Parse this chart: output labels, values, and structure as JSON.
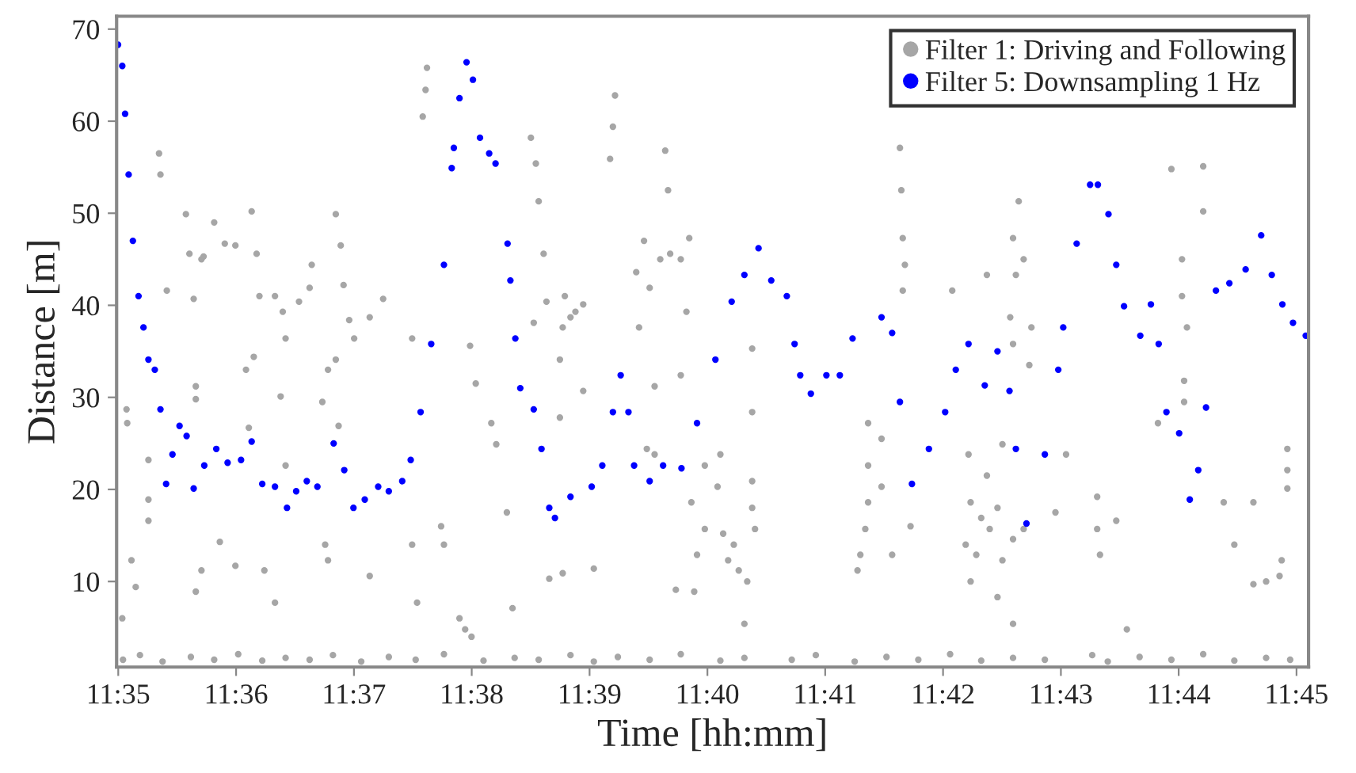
{
  "chart_data": {
    "type": "scatter",
    "xlabel": "Time [hh:mm]",
    "ylabel": "Distance [m]",
    "legend": "top right",
    "marker": "circle",
    "grid": false,
    "xlim": [
      11.5831,
      11.7517
    ],
    "ylim": [
      0.7,
      71.4
    ],
    "xticks": [
      {
        "value": 11.58333,
        "label": "11:35"
      },
      {
        "value": 11.6,
        "label": "11:36"
      },
      {
        "value": 11.61667,
        "label": "11:37"
      },
      {
        "value": 11.63333,
        "label": "11:38"
      },
      {
        "value": 11.65,
        "label": "11:39"
      },
      {
        "value": 11.66667,
        "label": "11:40"
      },
      {
        "value": 11.68333,
        "label": "11:41"
      },
      {
        "value": 11.7,
        "label": "11:42"
      },
      {
        "value": 11.71667,
        "label": "11:43"
      },
      {
        "value": 11.73333,
        "label": "11:44"
      },
      {
        "value": 11.75,
        "label": "11:45"
      }
    ],
    "yticks": [
      10,
      20,
      30,
      40,
      50,
      60,
      70
    ],
    "series": [
      {
        "name": "Filter 1: Driving and Following",
        "color": "#a6a6a6",
        "x": [
          11.5891,
          11.5893,
          11.5845,
          11.5846,
          11.5876,
          11.5876,
          11.5876,
          11.5839,
          11.5858,
          11.5852,
          11.5902,
          11.5929,
          11.5934,
          11.594,
          11.5951,
          11.5954,
          11.5969,
          11.5984,
          11.5999,
          11.6022,
          11.6029,
          11.6033,
          11.6055,
          11.6066,
          11.607,
          11.6089,
          11.6104,
          11.6107,
          11.6141,
          11.6148,
          11.6152,
          11.616,
          11.6167,
          11.6189,
          11.6208,
          11.5943,
          11.5943,
          11.6025,
          11.6014,
          11.6063,
          11.613,
          11.6141,
          11.6122,
          11.6145,
          11.6018,
          11.607,
          11.5951,
          11.5977,
          11.5999,
          11.5943,
          11.604,
          11.6055,
          11.6126,
          11.613,
          11.6189,
          11.6249,
          11.6256,
          11.629,
          11.6294,
          11.6268,
          11.6264,
          11.627,
          11.6249,
          11.6316,
          11.6324,
          11.6333,
          11.6331,
          11.6339,
          11.6361,
          11.6368,
          11.6383,
          11.6391,
          11.6417,
          11.6424,
          11.6428,
          11.6435,
          11.6439,
          11.6421,
          11.6443,
          11.6462,
          11.6473,
          11.648,
          11.6491,
          11.6458,
          11.6465,
          11.6462,
          11.6506,
          11.6536,
          11.6533,
          11.6529,
          11.6607,
          11.6611,
          11.6577,
          11.6566,
          11.6585,
          11.66,
          11.6614,
          11.6629,
          11.6641,
          11.6637,
          11.6629,
          11.6592,
          11.657,
          11.6491,
          11.6458,
          11.6581,
          11.6592,
          11.6644,
          11.6663,
          11.6685,
          11.6681,
          11.6689,
          11.6663,
          11.6652,
          11.6696,
          11.6711,
          11.6723,
          11.6719,
          11.673,
          11.673,
          11.6734,
          11.6622,
          11.6648,
          11.6704,
          11.673,
          11.673,
          11.6939,
          11.6941,
          11.6943,
          11.6946,
          11.6943,
          11.6894,
          11.6894,
          11.6894,
          11.689,
          11.6883,
          11.6879,
          11.6913,
          11.6913,
          11.6928,
          11.6954,
          11.7036,
          11.7039,
          11.7054,
          11.7066,
          11.7077,
          11.7032,
          11.7047,
          11.7084,
          11.7039,
          11.7077,
          11.7099,
          11.7099,
          11.7114,
          11.7122,
          11.7125,
          11.7099,
          11.7095,
          11.7099,
          11.7107,
          11.7114,
          11.7103,
          11.7062,
          11.7013,
          11.7062,
          11.7084,
          11.7159,
          11.7174,
          11.7218,
          11.7218,
          11.7222,
          11.7245,
          11.726,
          11.7323,
          11.7368,
          11.7368,
          11.7338,
          11.7338,
          11.7345,
          11.7341,
          11.7341,
          11.7304,
          11.7397,
          11.7412,
          11.7439,
          11.7439,
          11.7457,
          11.7476,
          11.7487,
          11.7487,
          11.7487,
          11.7479,
          11.584,
          11.5864,
          11.5896,
          11.5936,
          11.5969,
          11.6003,
          11.6037,
          11.607,
          11.6104,
          11.6137,
          11.6177,
          11.6216,
          11.6254,
          11.6294,
          11.635,
          11.6394,
          11.6428,
          11.6473,
          11.6506,
          11.654,
          11.6585,
          11.6629,
          11.6685,
          11.6719,
          11.6786,
          11.682,
          11.6875,
          11.692,
          11.6965,
          11.701,
          11.7054,
          11.7099,
          11.7144,
          11.7211,
          11.7233,
          11.7278,
          11.7323,
          11.7368,
          11.7412,
          11.7457,
          11.7491
        ],
        "values": [
          56.5,
          54.2,
          28.7,
          27.2,
          23.2,
          18.9,
          16.6,
          6.0,
          9.4,
          12.3,
          41.6,
          49.9,
          45.6,
          40.7,
          45.0,
          45.3,
          49.0,
          46.7,
          46.5,
          50.2,
          45.6,
          41.0,
          41.0,
          39.3,
          36.4,
          40.4,
          41.9,
          44.4,
          49.9,
          46.5,
          42.2,
          38.4,
          36.4,
          38.7,
          40.7,
          31.2,
          29.8,
          34.4,
          33.0,
          30.1,
          33.0,
          34.1,
          29.5,
          26.9,
          26.7,
          22.6,
          11.2,
          14.3,
          11.7,
          8.9,
          11.2,
          7.7,
          14.0,
          12.3,
          10.6,
          14.0,
          7.7,
          16.0,
          14.0,
          63.4,
          60.5,
          65.8,
          36.4,
          6.0,
          4.8,
          4.0,
          35.6,
          31.5,
          27.2,
          24.9,
          17.5,
          7.1,
          58.2,
          55.4,
          51.3,
          45.6,
          40.4,
          38.1,
          10.3,
          37.6,
          38.7,
          39.3,
          40.1,
          34.1,
          41.0,
          10.9,
          11.4,
          62.8,
          59.4,
          55.9,
          56.8,
          52.5,
          47.0,
          43.6,
          41.9,
          45.0,
          45.6,
          45.0,
          47.3,
          39.3,
          32.4,
          31.2,
          37.6,
          30.7,
          27.8,
          24.4,
          23.8,
          18.6,
          22.6,
          23.8,
          20.3,
          15.2,
          15.7,
          12.9,
          12.3,
          11.2,
          10.0,
          5.4,
          20.9,
          18.0,
          15.7,
          9.1,
          8.9,
          14.0,
          28.4,
          35.3,
          57.1,
          52.5,
          47.3,
          44.4,
          41.6,
          27.2,
          22.6,
          18.6,
          15.7,
          12.9,
          11.2,
          25.5,
          20.3,
          12.9,
          16.0,
          23.8,
          18.6,
          16.9,
          15.7,
          18.0,
          14.0,
          12.9,
          12.3,
          10.0,
          8.3,
          5.4,
          14.6,
          15.7,
          33.5,
          37.6,
          35.8,
          38.7,
          47.3,
          51.3,
          45.0,
          43.3,
          43.3,
          41.6,
          21.5,
          24.9,
          17.5,
          23.8,
          19.2,
          15.7,
          12.9,
          16.6,
          4.8,
          54.8,
          55.1,
          50.2,
          45.0,
          41.0,
          37.6,
          31.8,
          29.5,
          27.2,
          18.6,
          14.0,
          18.6,
          9.7,
          10.0,
          10.6,
          24.4,
          22.1,
          20.1,
          12.3,
          1.5,
          2.0,
          1.3,
          1.8,
          1.5,
          2.1,
          1.4,
          1.7,
          1.5,
          2.0,
          1.3,
          1.8,
          1.5,
          2.1,
          1.4,
          1.7,
          1.5,
          2.0,
          1.3,
          1.8,
          1.5,
          2.1,
          1.4,
          1.7,
          1.5,
          2.0,
          1.3,
          1.8,
          1.5,
          2.1,
          1.4,
          1.7,
          1.5,
          2.0,
          1.3,
          1.8,
          1.5,
          2.1,
          1.4,
          1.7,
          1.5
        ]
      },
      {
        "name": "Filter 5: Downsampling 1 Hz",
        "color": "#0000ff",
        "x": [
          11.5833,
          11.5839,
          11.5843,
          11.5848,
          11.5854,
          11.5862,
          11.5869,
          11.5876,
          11.5885,
          11.5893,
          11.5901,
          11.591,
          11.592,
          11.593,
          11.594,
          11.5955,
          11.5972,
          11.5988,
          11.6007,
          11.6022,
          11.6037,
          11.6055,
          11.6072,
          11.6085,
          11.61,
          11.6115,
          11.6138,
          11.6153,
          11.6166,
          11.6182,
          11.6201,
          11.6216,
          11.6235,
          11.6247,
          11.6261,
          11.6276,
          11.6294,
          11.6305,
          11.6308,
          11.6316,
          11.6326,
          11.6335,
          11.6345,
          11.6358,
          11.6367,
          11.6384,
          11.6388,
          11.6395,
          11.6402,
          11.6421,
          11.6432,
          11.6443,
          11.6451,
          11.6473,
          11.6503,
          11.6518,
          11.6533,
          11.6544,
          11.6555,
          11.6563,
          11.6585,
          11.6604,
          11.663,
          11.6652,
          11.6678,
          11.6701,
          11.6719,
          11.6739,
          11.6757,
          11.6779,
          11.679,
          11.6798,
          11.6813,
          11.6835,
          11.6854,
          11.6872,
          11.6913,
          11.6928,
          11.6939,
          11.6956,
          11.698,
          11.7003,
          11.7018,
          11.7036,
          11.7059,
          11.7077,
          11.7094,
          11.7103,
          11.7118,
          11.7144,
          11.7163,
          11.717,
          11.7189,
          11.7208,
          11.7219,
          11.7234,
          11.7245,
          11.7256,
          11.7279,
          11.7294,
          11.7305,
          11.7316,
          11.7334,
          11.7349,
          11.7361,
          11.7372,
          11.7386,
          11.7405,
          11.7428,
          11.745,
          11.7465,
          11.748,
          11.7495,
          11.7513
        ],
        "values": [
          68.3,
          66.0,
          60.8,
          54.2,
          47.0,
          41.0,
          37.6,
          34.1,
          33.0,
          28.7,
          20.6,
          23.8,
          26.9,
          25.8,
          20.1,
          22.6,
          24.4,
          22.9,
          23.2,
          25.2,
          20.6,
          20.3,
          18.0,
          19.8,
          20.9,
          20.3,
          25.0,
          22.1,
          18.0,
          18.9,
          20.3,
          19.8,
          20.9,
          23.2,
          28.4,
          35.8,
          44.4,
          54.9,
          57.1,
          62.5,
          66.4,
          64.5,
          58.2,
          56.5,
          55.4,
          46.7,
          42.7,
          36.4,
          31.0,
          28.7,
          24.4,
          18.0,
          16.9,
          19.2,
          20.3,
          22.6,
          28.4,
          32.4,
          28.4,
          22.6,
          20.9,
          22.6,
          22.3,
          27.2,
          34.1,
          40.4,
          43.3,
          46.2,
          42.7,
          41.0,
          35.8,
          32.4,
          30.4,
          32.4,
          32.4,
          36.4,
          38.7,
          37.0,
          29.5,
          20.6,
          24.4,
          28.4,
          33.0,
          35.8,
          31.3,
          35.0,
          30.7,
          24.4,
          16.3,
          23.8,
          33.0,
          37.6,
          46.7,
          53.1,
          53.1,
          49.9,
          44.4,
          39.9,
          36.7,
          40.1,
          35.8,
          28.4,
          26.1,
          18.9,
          22.1,
          28.9,
          41.6,
          42.4,
          43.9,
          47.6,
          43.3,
          40.1,
          38.1,
          36.7
        ]
      }
    ]
  }
}
